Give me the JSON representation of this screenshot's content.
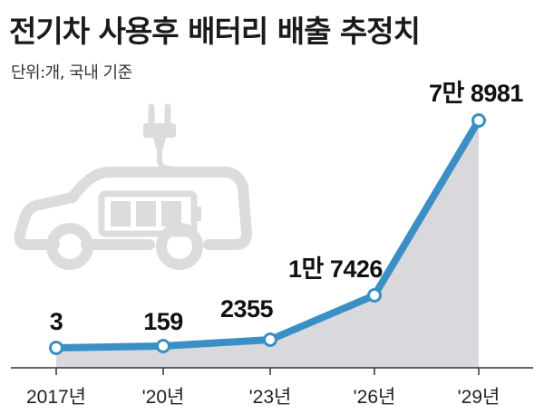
{
  "header": {
    "title": "전기차 사용후 배터리 배출 추정치",
    "subtitle": "단위:개, 국내 기준"
  },
  "colors": {
    "line": "#3a8fc4",
    "area": "#d9d9dd",
    "marker_fill": "#ffffff",
    "axis": "#333333",
    "illustration": "#dcdcdc"
  },
  "illustration": {
    "icon": "electric-car-battery-plug-icon"
  },
  "chart_data": {
    "type": "area",
    "title": "전기차 사용후 배터리 배출 추정치",
    "subtitle": "단위:개, 국내 기준",
    "categories": [
      "2017년",
      "'20년",
      "'23년",
      "'26년",
      "'29년"
    ],
    "values": [
      3,
      159,
      2355,
      17426,
      78981
    ],
    "data_labels": [
      "3",
      "159",
      "2355",
      "1만 7426",
      "7만 8981"
    ],
    "xlabel": "",
    "ylabel": "",
    "grid": false,
    "legend": "none"
  }
}
